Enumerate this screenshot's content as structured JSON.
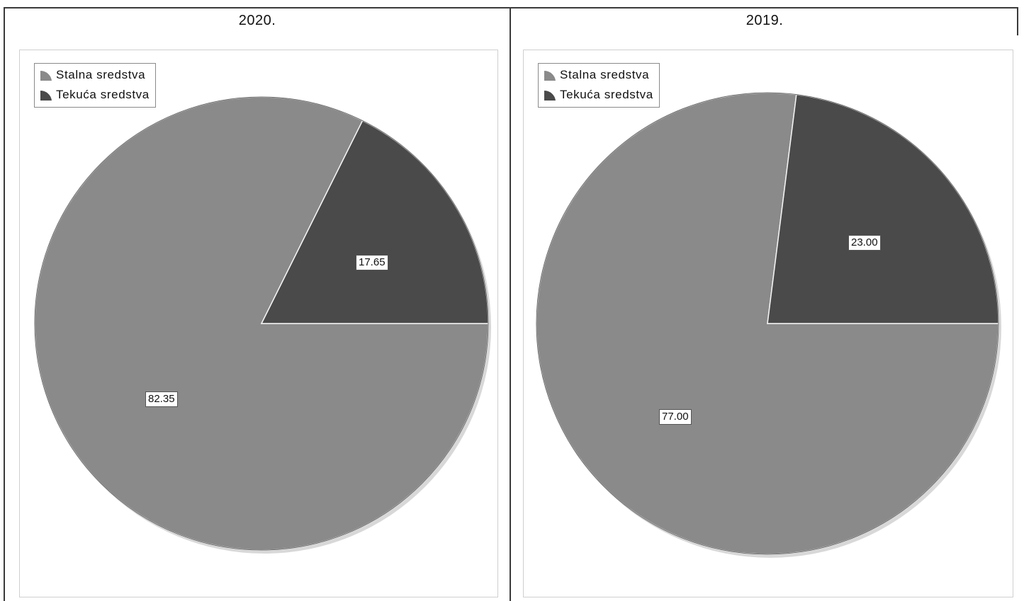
{
  "chart_data": [
    {
      "type": "pie",
      "title": "2020.",
      "categories": [
        "Stalna sredstva",
        "Tekuća sredstva"
      ],
      "values": [
        82.35,
        17.65
      ],
      "labels": [
        "82.35",
        "17.65"
      ],
      "colors": [
        "#8a8a8a",
        "#4a4a4a"
      ],
      "legend": "top-left"
    },
    {
      "type": "pie",
      "title": "2019.",
      "categories": [
        "Stalna sredstva",
        "Tekuća sredstva"
      ],
      "values": [
        77.0,
        23.0
      ],
      "labels": [
        "77.00",
        "23.00"
      ],
      "colors": [
        "#8a8a8a",
        "#4a4a4a"
      ],
      "legend": "top-left"
    }
  ]
}
